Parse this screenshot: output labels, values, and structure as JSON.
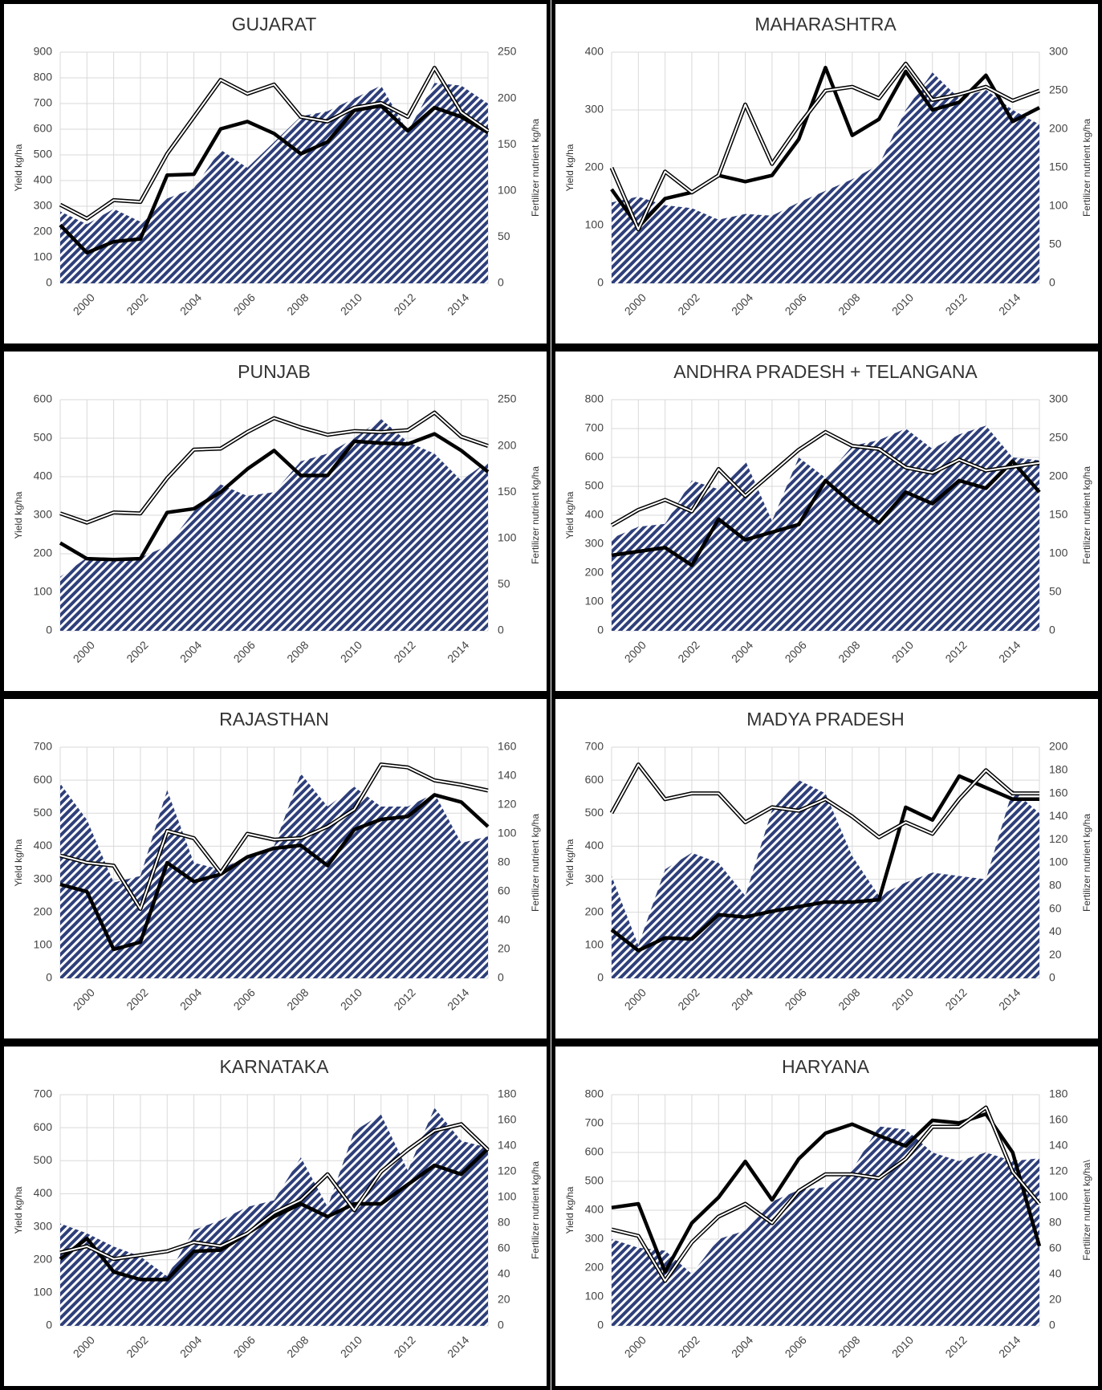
{
  "chart_data": [
    {
      "type": "combo",
      "title": "GUJARAT",
      "y_label": "Yield kg/ha",
      "y2_label": "Fertilizer nutrient kg/ha",
      "categories": [
        null,
        "2000",
        null,
        "2002",
        null,
        "2004",
        null,
        "2006",
        null,
        "2008",
        null,
        "2010",
        null,
        "2012",
        null,
        "2014",
        null
      ],
      "ylim": [
        0,
        900
      ],
      "yticks": [
        0,
        100,
        200,
        300,
        400,
        500,
        600,
        700,
        800,
        900
      ],
      "y2lim": [
        0,
        250
      ],
      "y2ticks": [
        0,
        50,
        100,
        150,
        200,
        250
      ],
      "grid": true,
      "series": [
        {
          "type": "area",
          "color": "#2e3f7a",
          "values": [
            280,
            230,
            290,
            240,
            330,
            370,
            520,
            450,
            550,
            650,
            670,
            720,
            770,
            590,
            780,
            770,
            700
          ]
        },
        {
          "type": "line",
          "line_style": "thick",
          "color": "#000000",
          "axis": "y2",
          "values": [
            63,
            33,
            45,
            48,
            117,
            118,
            167,
            175,
            162,
            140,
            153,
            187,
            192,
            165,
            190,
            180,
            163
          ]
        },
        {
          "type": "line",
          "line_style": "double",
          "color": "#000000",
          "axis": "y2",
          "values": [
            85,
            70,
            90,
            88,
            140,
            180,
            220,
            205,
            215,
            180,
            175,
            190,
            195,
            180,
            233,
            185,
            165
          ]
        }
      ]
    },
    {
      "type": "combo",
      "title": "MAHARASHTRA",
      "y_label": "Yield kg/ha",
      "y2_label": "Fertilizer nutrient kg/ha",
      "categories": [
        null,
        "2000",
        null,
        "2002",
        null,
        "2004",
        null,
        "2006",
        null,
        "2008",
        null,
        "2010",
        null,
        "2012",
        null,
        "2014",
        null
      ],
      "ylim": [
        0,
        400
      ],
      "yticks": [
        0,
        100,
        200,
        300,
        400
      ],
      "y2lim": [
        0,
        300
      ],
      "y2ticks": [
        0,
        50,
        100,
        150,
        200,
        250,
        300
      ],
      "grid": true,
      "series": [
        {
          "type": "area",
          "color": "#2e3f7a",
          "values": [
            140,
            150,
            135,
            130,
            110,
            120,
            117,
            140,
            160,
            180,
            205,
            300,
            365,
            320,
            335,
            300,
            275
          ]
        },
        {
          "type": "line",
          "line_style": "thick",
          "color": "#000000",
          "axis": "y2",
          "values": [
            122,
            73,
            110,
            118,
            140,
            132,
            140,
            187,
            280,
            192,
            213,
            275,
            225,
            235,
            270,
            210,
            228
          ]
        },
        {
          "type": "line",
          "line_style": "double",
          "color": "#000000",
          "axis": "y2",
          "values": [
            150,
            70,
            145,
            118,
            140,
            232,
            155,
            205,
            250,
            255,
            240,
            285,
            238,
            245,
            255,
            237,
            250
          ]
        }
      ]
    },
    {
      "type": "combo",
      "title": "PUNJAB",
      "y_label": "Yield kg/ha",
      "y2_label": "Fertilizer nutrient kg/ha",
      "categories": [
        null,
        "2000",
        null,
        "2002",
        null,
        "2004",
        null,
        "2006",
        null,
        "2008",
        null,
        "2010",
        null,
        "2012",
        null,
        "2014",
        null
      ],
      "ylim": [
        0,
        600
      ],
      "yticks": [
        0,
        100,
        200,
        300,
        400,
        500,
        600
      ],
      "y2lim": [
        0,
        250
      ],
      "y2ticks": [
        0,
        50,
        100,
        150,
        200,
        250
      ],
      "grid": true,
      "series": [
        {
          "type": "area",
          "color": "#2e3f7a",
          "values": [
            140,
            190,
            185,
            190,
            220,
            310,
            380,
            350,
            360,
            440,
            460,
            500,
            550,
            490,
            460,
            390,
            440
          ]
        },
        {
          "type": "line",
          "line_style": "thick",
          "color": "#000000",
          "axis": "y2",
          "values": [
            95,
            78,
            77,
            78,
            128,
            132,
            150,
            175,
            195,
            168,
            168,
            205,
            203,
            202,
            213,
            195,
            172
          ]
        },
        {
          "type": "line",
          "line_style": "double",
          "color": "#000000",
          "axis": "y2",
          "values": [
            127,
            117,
            128,
            127,
            165,
            196,
            197,
            215,
            230,
            220,
            212,
            216,
            215,
            217,
            236,
            210,
            200
          ]
        }
      ]
    },
    {
      "type": "combo",
      "title": "ANDHRA PRADESH + TELANGANA",
      "y_label": "Yield kg/ha",
      "y2_label": "Fertilizer nutrient kg/ha",
      "categories": [
        null,
        "2000",
        null,
        "2002",
        null,
        "2004",
        null,
        "2006",
        null,
        "2008",
        null,
        "2010",
        null,
        "2012",
        null,
        "2014",
        null
      ],
      "ylim": [
        0,
        800
      ],
      "yticks": [
        0,
        100,
        200,
        300,
        400,
        500,
        600,
        700,
        800
      ],
      "y2lim": [
        0,
        300
      ],
      "y2ticks": [
        0,
        50,
        100,
        150,
        200,
        250,
        300
      ],
      "grid": true,
      "series": [
        {
          "type": "area",
          "color": "#2e3f7a",
          "values": [
            320,
            360,
            370,
            520,
            490,
            590,
            380,
            600,
            530,
            640,
            660,
            700,
            630,
            680,
            710,
            600,
            590
          ]
        },
        {
          "type": "line",
          "line_style": "thick",
          "color": "#000000",
          "axis": "y2",
          "values": [
            98,
            103,
            108,
            85,
            145,
            118,
            128,
            138,
            195,
            165,
            140,
            180,
            165,
            195,
            185,
            220,
            180
          ]
        },
        {
          "type": "line",
          "line_style": "double",
          "color": "#000000",
          "axis": "y2",
          "values": [
            137,
            157,
            170,
            155,
            210,
            175,
            205,
            235,
            258,
            240,
            236,
            212,
            205,
            222,
            208,
            213,
            218
          ]
        }
      ]
    },
    {
      "type": "combo",
      "title": "RAJASTHAN",
      "y_label": "Yield kg/ha",
      "y2_label": "Fertilizer nutrient kg/ha",
      "categories": [
        null,
        "2000",
        null,
        "2002",
        null,
        "2004",
        null,
        "2006",
        null,
        "2008",
        null,
        "2010",
        null,
        "2012",
        null,
        "2014",
        null
      ],
      "ylim": [
        0,
        700
      ],
      "yticks": [
        0,
        100,
        200,
        300,
        400,
        500,
        600,
        700
      ],
      "y2lim": [
        0,
        160
      ],
      "y2ticks": [
        0,
        20,
        40,
        60,
        80,
        100,
        120,
        140,
        160
      ],
      "grid": true,
      "series": [
        {
          "type": "area",
          "color": "#2e3f7a",
          "values": [
            590,
            480,
            290,
            310,
            570,
            350,
            330,
            370,
            400,
            620,
            520,
            580,
            520,
            520,
            560,
            410,
            430
          ]
        },
        {
          "type": "line",
          "line_style": "thick",
          "color": "#000000",
          "axis": "y2",
          "values": [
            65,
            60,
            20,
            25,
            80,
            67,
            72,
            84,
            90,
            92,
            78,
            103,
            110,
            112,
            127,
            122,
            105
          ]
        },
        {
          "type": "line",
          "line_style": "double",
          "color": "#000000",
          "axis": "y2",
          "values": [
            85,
            80,
            78,
            48,
            102,
            97,
            73,
            100,
            96,
            97,
            105,
            117,
            148,
            146,
            137,
            134,
            130
          ]
        }
      ]
    },
    {
      "type": "combo",
      "title": "MADYA PRADESH",
      "y_label": "Yield kg/ha",
      "y2_label": "Fertilizer nutrient kg/ha",
      "categories": [
        null,
        "2000",
        null,
        "2002",
        null,
        "2004",
        null,
        "2006",
        null,
        "2008",
        null,
        "2010",
        null,
        "2012",
        null,
        "2014",
        null
      ],
      "ylim": [
        0,
        700
      ],
      "yticks": [
        0,
        100,
        200,
        300,
        400,
        500,
        600,
        700
      ],
      "y2lim": [
        0,
        200
      ],
      "y2ticks": [
        0,
        20,
        40,
        60,
        80,
        100,
        120,
        140,
        160,
        180,
        200
      ],
      "grid": true,
      "series": [
        {
          "type": "area",
          "color": "#2e3f7a",
          "values": [
            310,
            100,
            330,
            380,
            350,
            250,
            510,
            600,
            560,
            370,
            250,
            290,
            320,
            310,
            300,
            570,
            500
          ]
        },
        {
          "type": "line",
          "line_style": "thick",
          "color": "#000000",
          "axis": "y2",
          "values": [
            42,
            24,
            35,
            34,
            55,
            53,
            58,
            62,
            66,
            66,
            68,
            148,
            137,
            175,
            165,
            155,
            155
          ]
        },
        {
          "type": "line",
          "line_style": "double",
          "color": "#000000",
          "axis": "y2",
          "values": [
            143,
            185,
            155,
            160,
            160,
            135,
            148,
            145,
            155,
            140,
            122,
            135,
            125,
            155,
            180,
            160,
            160
          ]
        }
      ]
    },
    {
      "type": "combo",
      "title": "KARNATAKA",
      "y_label": "Yield kg/ha",
      "y2_label": "Fertilizer nutrient kg/ha",
      "categories": [
        null,
        "2000",
        null,
        "2002",
        null,
        "2004",
        null,
        "2006",
        null,
        "2008",
        null,
        "2010",
        null,
        "2012",
        null,
        "2014",
        null
      ],
      "ylim": [
        0,
        700
      ],
      "yticks": [
        0,
        100,
        200,
        300,
        400,
        500,
        600,
        700
      ],
      "y2lim": [
        0,
        180
      ],
      "y2ticks": [
        0,
        20,
        40,
        60,
        80,
        100,
        120,
        140,
        160,
        180
      ],
      "grid": true,
      "series": [
        {
          "type": "area",
          "color": "#2e3f7a",
          "values": [
            310,
            280,
            240,
            210,
            150,
            290,
            320,
            360,
            380,
            510,
            360,
            590,
            640,
            470,
            660,
            560,
            540
          ]
        },
        {
          "type": "line",
          "line_style": "thick",
          "color": "#000000",
          "axis": "y2",
          "values": [
            52,
            68,
            42,
            36,
            36,
            58,
            59,
            72,
            85,
            95,
            85,
            95,
            95,
            110,
            125,
            118,
            138
          ]
        },
        {
          "type": "line",
          "line_style": "double",
          "color": "#000000",
          "axis": "y2",
          "values": [
            57,
            62,
            52,
            55,
            58,
            65,
            62,
            72,
            88,
            98,
            118,
            90,
            120,
            137,
            152,
            157,
            137
          ]
        }
      ]
    },
    {
      "type": "combo",
      "title": "HARYANA",
      "y_label": "Yield kg/ha",
      "y2_label": "Fertilizer nutrient kg/ha\\",
      "categories": [
        null,
        "2000",
        null,
        "2002",
        null,
        "2004",
        null,
        "2006",
        null,
        "2008",
        null,
        "2010",
        null,
        "2012",
        null,
        "2014",
        null
      ],
      "ylim": [
        0,
        800
      ],
      "yticks": [
        0,
        100,
        200,
        300,
        400,
        500,
        600,
        700,
        800
      ],
      "y2lim": [
        0,
        180
      ],
      "y2ticks": [
        0,
        20,
        40,
        60,
        80,
        100,
        120,
        140,
        160,
        180
      ],
      "grid": true,
      "series": [
        {
          "type": "area",
          "color": "#2e3f7a",
          "values": [
            300,
            270,
            260,
            180,
            300,
            330,
            430,
            470,
            480,
            540,
            690,
            680,
            600,
            570,
            600,
            570,
            580
          ]
        },
        {
          "type": "line",
          "line_style": "thick",
          "color": "#000000",
          "axis": "y2",
          "values": [
            92,
            95,
            42,
            80,
            100,
            128,
            98,
            130,
            150,
            157,
            148,
            140,
            160,
            158,
            165,
            135,
            62
          ]
        },
        {
          "type": "line",
          "line_style": "double",
          "color": "#000000",
          "axis": "y2",
          "values": [
            75,
            70,
            35,
            65,
            85,
            95,
            80,
            105,
            118,
            118,
            115,
            130,
            155,
            155,
            170,
            120,
            95
          ]
        }
      ]
    }
  ]
}
